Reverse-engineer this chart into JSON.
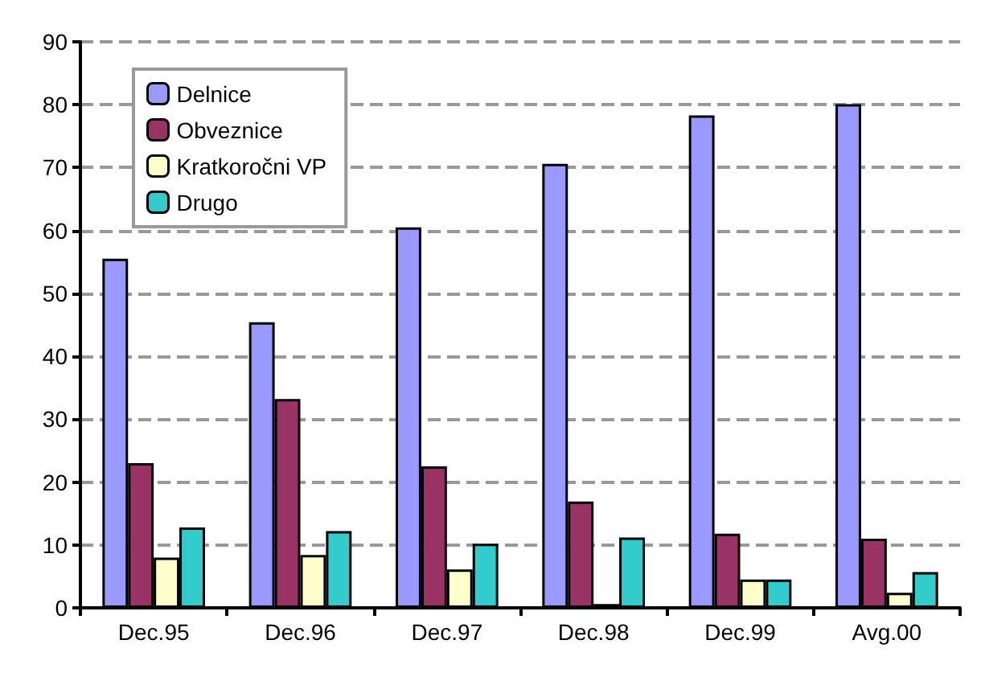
{
  "chart_data": {
    "type": "bar",
    "categories": [
      "Dec.95",
      "Dec.96",
      "Dec.97",
      "Dec.98",
      "Dec.99",
      "Avg.00"
    ],
    "series": [
      {
        "name": "Delnice",
        "color": "#9999ff",
        "values": [
          55.5,
          45.4,
          60.5,
          70.6,
          78.3,
          80.1
        ]
      },
      {
        "name": "Obveznice",
        "color": "#993366",
        "values": [
          23,
          33.2,
          22.5,
          16.9,
          11.8,
          11
        ]
      },
      {
        "name": "Kratkoročni VP",
        "color": "#ffffcc",
        "values": [
          8,
          8.4,
          6.1,
          0.6,
          4.5,
          2.4
        ]
      },
      {
        "name": "Drugo",
        "color": "#33cccc",
        "values": [
          12.8,
          12.2,
          10.2,
          11.2,
          4.5,
          5.7
        ]
      }
    ],
    "ylim": [
      0,
      90
    ],
    "yticks": [
      0,
      10,
      20,
      30,
      40,
      50,
      60,
      70,
      80,
      90
    ],
    "grid": "y",
    "legend": "top left"
  }
}
